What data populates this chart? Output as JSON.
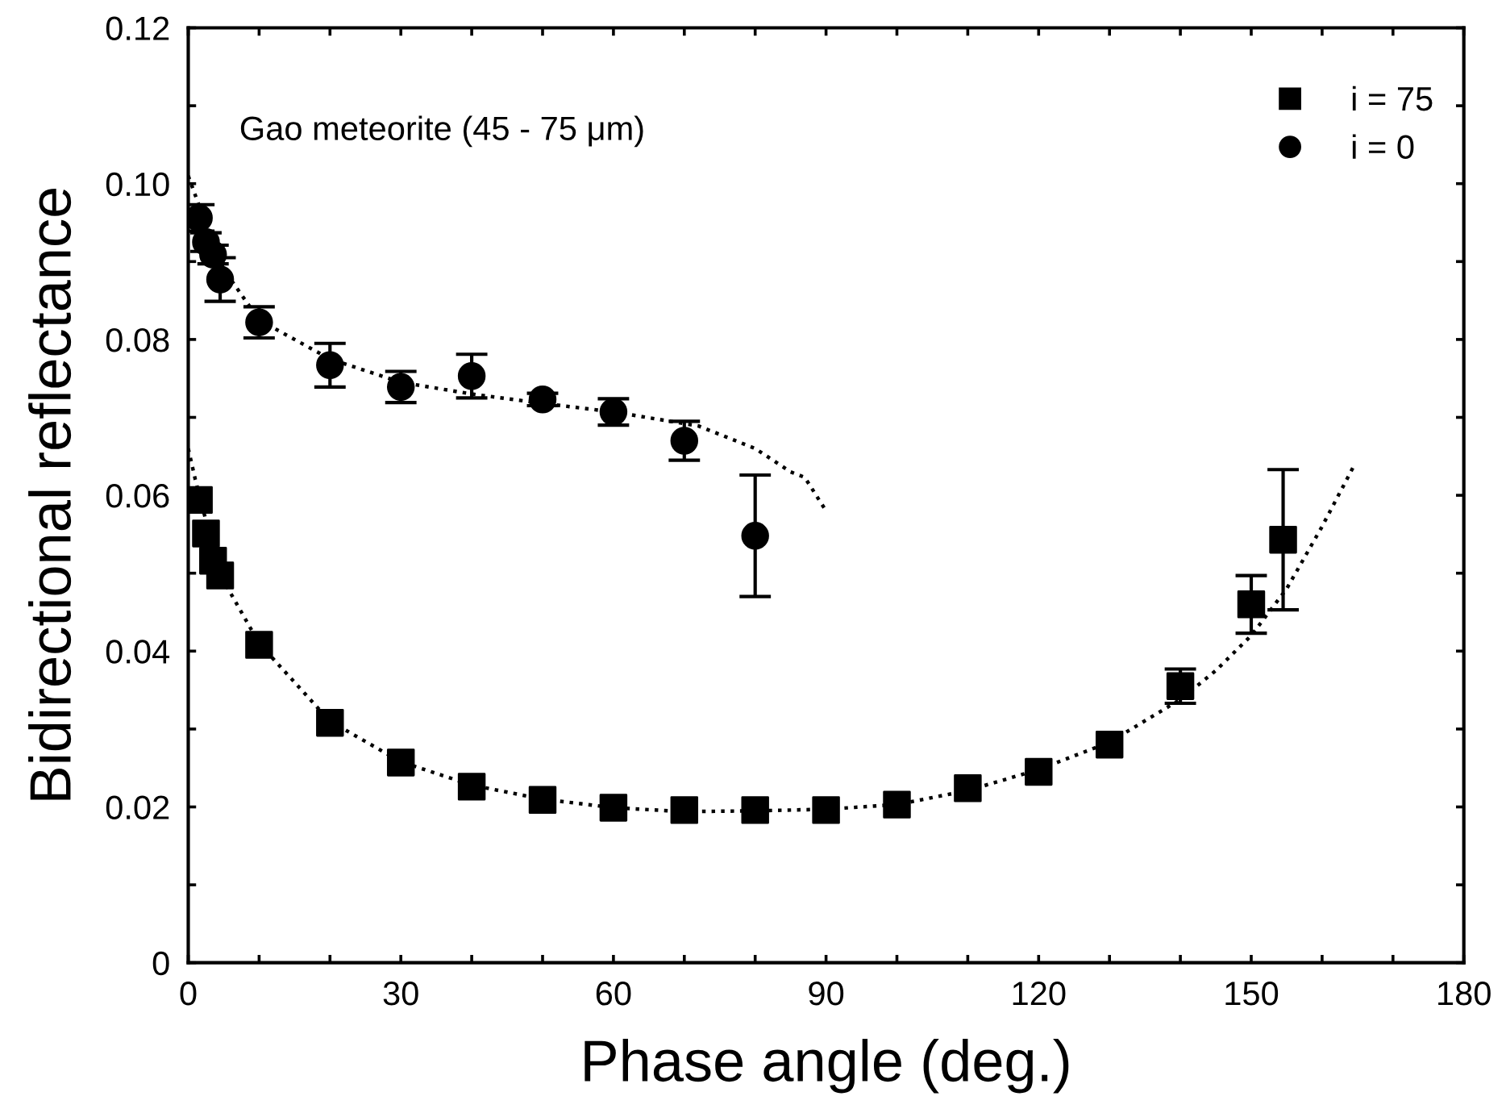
{
  "chart_data": {
    "type": "scatter",
    "xlabel": "Phase angle (deg.)",
    "ylabel": "Bidirectional reflectance",
    "annotations": [
      "Gao meteorite (45 - 75 μm)"
    ],
    "xlim": [
      0,
      180
    ],
    "ylim": [
      0,
      0.12
    ],
    "xticks": [
      0,
      {
        "value": 10,
        "label": null
      },
      {
        "value": 20,
        "label": null
      },
      30,
      {
        "value": 40,
        "label": null
      },
      {
        "value": 50,
        "label": null
      },
      60,
      {
        "value": 70,
        "label": null
      },
      {
        "value": 80,
        "label": null
      },
      90,
      {
        "value": 100,
        "label": null
      },
      {
        "value": 110,
        "label": null
      },
      120,
      {
        "value": 130,
        "label": null
      },
      {
        "value": 140,
        "label": null
      },
      150,
      {
        "value": 160,
        "label": null
      },
      {
        "value": 170,
        "label": null
      },
      180
    ],
    "yticks": [
      0,
      {
        "value": 0.01,
        "label": null
      },
      0.02,
      {
        "value": 0.03,
        "label": null
      },
      0.04,
      {
        "value": 0.05,
        "label": null
      },
      0.06,
      {
        "value": 0.07,
        "label": null
      },
      0.08,
      {
        "value": 0.09,
        "label": null
      },
      {
        "value": 0.1,
        "label": "0.10"
      },
      {
        "value": 0.11,
        "label": null
      },
      0.12
    ],
    "grid": false,
    "legend": "top right",
    "series": [
      {
        "name": "i = 75",
        "color": "#000000",
        "marker": "square",
        "x": [
          1.5,
          2.5,
          3.5,
          4.5,
          10,
          20,
          30,
          40,
          50,
          60,
          70,
          80,
          90,
          100,
          110,
          120,
          130,
          140,
          150,
          154.5
        ],
        "values": [
          0.0594,
          0.0551,
          0.0516,
          0.0497,
          0.0408,
          0.0308,
          0.0257,
          0.0226,
          0.0209,
          0.0199,
          0.0196,
          0.0196,
          0.0196,
          0.0203,
          0.0224,
          0.0245,
          0.028,
          0.0355,
          0.046,
          0.0543
        ],
        "errors": [
          null,
          null,
          null,
          null,
          null,
          null,
          null,
          null,
          null,
          null,
          null,
          null,
          null,
          null,
          null,
          null,
          null,
          0.0022,
          0.0037,
          0.009
        ]
      },
      {
        "name": "i = 0",
        "color": "#000000",
        "marker": "circle",
        "x": [
          1.5,
          2.5,
          3.5,
          4.5,
          10,
          20,
          30,
          40,
          50,
          60,
          70,
          80
        ],
        "values": [
          0.0956,
          0.0925,
          0.0909,
          0.0877,
          0.0822,
          0.0767,
          0.0739,
          0.0753,
          0.0723,
          0.0707,
          0.067,
          0.0548
        ],
        "errors": [
          0.0017,
          0.0012,
          0.0012,
          0.0028,
          0.002,
          0.0028,
          0.002,
          0.0028,
          0.0008,
          0.0017,
          0.0025,
          0.0078
        ]
      },
      {
        "type": "line",
        "color": "#000000",
        "line_style": "dotted",
        "x": [
          0,
          2,
          5,
          10,
          20,
          30,
          40,
          50,
          60,
          72,
          80,
          85,
          87,
          90
        ],
        "values": [
          0.101,
          0.096,
          0.089,
          0.0825,
          0.0775,
          0.0745,
          0.073,
          0.0718,
          0.0707,
          0.0689,
          0.066,
          0.063,
          0.0623,
          0.058
        ]
      },
      {
        "type": "line",
        "color": "#000000",
        "line_style": "dotted",
        "x": [
          0,
          1,
          3,
          5,
          10,
          20,
          30,
          40,
          50,
          60,
          70,
          80,
          90,
          100,
          110,
          120,
          130,
          140,
          145,
          150,
          155,
          160,
          164.5
        ],
        "values": [
          0.066,
          0.062,
          0.055,
          0.049,
          0.041,
          0.031,
          0.0258,
          0.0228,
          0.021,
          0.0199,
          0.0194,
          0.0195,
          0.0197,
          0.0203,
          0.0221,
          0.0248,
          0.0283,
          0.0338,
          0.0375,
          0.042,
          0.048,
          0.056,
          0.0638
        ]
      }
    ]
  }
}
